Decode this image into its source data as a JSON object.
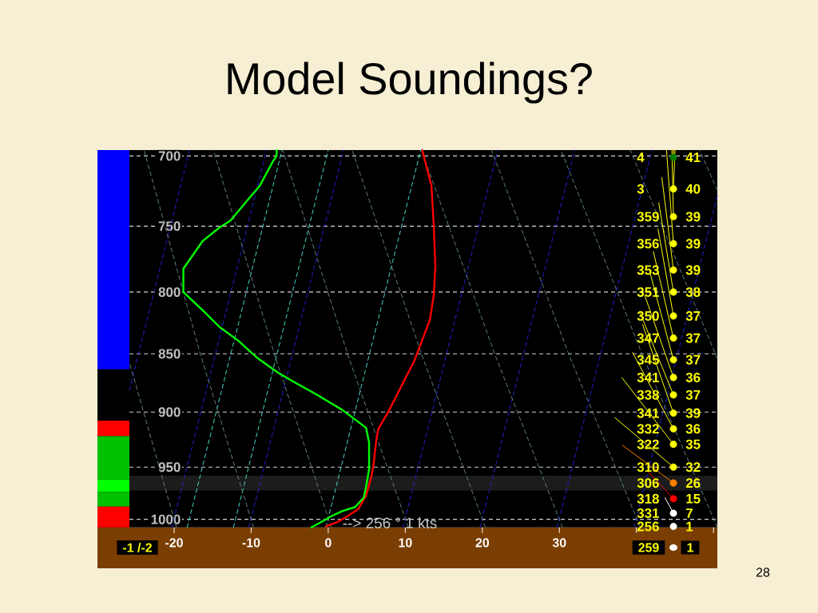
{
  "chart_data": {
    "type": "line",
    "title": "Model Soundings?",
    "xlim": [
      -25.8,
      50.5
    ],
    "xticks": [
      -20,
      -10,
      0,
      10,
      20,
      30,
      {
        "value": 40,
        "label": null
      },
      {
        "value": 50,
        "label": null
      }
    ],
    "ylim": [
      1008,
      696
    ],
    "yticks": [
      700,
      750,
      800,
      850,
      900,
      950,
      1000
    ],
    "log": "y",
    "grid": "y",
    "bands": [
      {
        "axis": "y",
        "from": 958,
        "to": 972,
        "color": "#1c1c1c"
      }
    ],
    "series": [
      {
        "color": "#2020d0",
        "line_style": "dashed",
        "x": [
          -25.8,
          -18.0
        ],
        "values": [
          881,
          696
        ]
      },
      {
        "color": "#2020d0",
        "line_style": "dashed",
        "x": [
          -20.3,
          -8.0
        ],
        "values": [
          1008,
          696
        ]
      },
      {
        "color": "#40d8c8",
        "line_style": "dashed",
        "x": [
          -18.3,
          -6.0
        ],
        "values": [
          1008,
          696
        ]
      },
      {
        "color": "#40d8c8",
        "line_style": "dashed",
        "x": [
          -12.3,
          0.0
        ],
        "values": [
          1008,
          696
        ]
      },
      {
        "color": "#2020d0",
        "line_style": "dashed",
        "x": [
          -10.3,
          2.0
        ],
        "values": [
          1008,
          696
        ]
      },
      {
        "color": "#40d8c8",
        "line_style": "dashed",
        "x": [
          -0.3,
          12.0
        ],
        "values": [
          1008,
          696
        ]
      },
      {
        "color": "#2020d0",
        "line_style": "dashed",
        "x": [
          9.7,
          22.0
        ],
        "values": [
          1008,
          696
        ]
      },
      {
        "color": "#2020d0",
        "line_style": "dashed",
        "x": [
          19.7,
          32.0
        ],
        "values": [
          1008,
          696
        ]
      },
      {
        "color": "#2020d0",
        "line_style": "dashed",
        "x": [
          29.7,
          42.0
        ],
        "values": [
          1008,
          696
        ]
      },
      {
        "color": "#2020d0",
        "line_style": "dashed",
        "x": [
          39.7,
          50.5
        ],
        "values": [
          1008,
          728
        ]
      },
      {
        "color": "#5f8080",
        "line_style": "dashed",
        "x": [
          -19.7,
          -25.8
        ],
        "values": [
          1008,
          857
        ]
      },
      {
        "color": "#5f8080",
        "line_style": "dashed",
        "x": [
          -9.7,
          -16.6,
          -23.9
        ],
        "values": [
          1008,
          850,
          696
        ]
      },
      {
        "color": "#5f8080",
        "line_style": "dashed",
        "x": [
          0.4,
          -7.0,
          -14.9
        ],
        "values": [
          1008,
          850,
          696
        ]
      },
      {
        "color": "#5f8080",
        "line_style": "dashed",
        "x": [
          10.4,
          2.5,
          -5.9
        ],
        "values": [
          1008,
          850,
          696
        ]
      },
      {
        "color": "#5f8080",
        "line_style": "dashed",
        "x": [
          20.4,
          12.1,
          3.1
        ],
        "values": [
          1008,
          850,
          696
        ]
      },
      {
        "color": "#5f8080",
        "line_style": "dashed",
        "x": [
          30.4,
          21.6,
          12.1
        ],
        "values": [
          1008,
          850,
          696
        ]
      },
      {
        "color": "#5f8080",
        "line_style": "dashed",
        "x": [
          40.5,
          31.2,
          21.2
        ],
        "values": [
          1008,
          850,
          696
        ]
      },
      {
        "color": "#5f8080",
        "line_style": "dashed",
        "x": [
          50.5,
          40.7,
          30.2
        ],
        "values": [
          1008,
          850,
          696
        ]
      },
      {
        "color": "#5f8080",
        "line_style": "dashed",
        "x": [
          50.5,
          39.2
        ],
        "values": [
          854,
          696
        ]
      },
      {
        "color": "#5f8080",
        "line_style": "dashed",
        "x": [
          50.5,
          48.2
        ],
        "values": [
          724,
          696
        ]
      },
      {
        "color": "#ff0000",
        "x": [
          12.2,
          13.4,
          13.7,
          13.9,
          13.7,
          13.2,
          12.3,
          11.1,
          9.9,
          9.0,
          7.7,
          6.5,
          6.2,
          5.9,
          5.6,
          4.9,
          3.9,
          2.5,
          1.1,
          -0.3
        ],
        "values": [
          696,
          721,
          750,
          780,
          802,
          822,
          837,
          857,
          872,
          884,
          901,
          915,
          927,
          947,
          959,
          977,
          990,
          997,
          1003,
          1007
        ]
      },
      {
        "color": "#00ff00",
        "x": [
          -6.7,
          -6.7,
          -7.2,
          -8.9,
          -10.6,
          -12.7,
          -14.1,
          -16.3,
          -18.8,
          -18.8,
          -16.2,
          -14.1,
          -11.7,
          -9.3,
          -6.5,
          -4.4,
          -1.7,
          1.8,
          4.9,
          5.3,
          5.3,
          4.9,
          4.6,
          3.5,
          1.8,
          0.4,
          -1.0,
          -2.2
        ],
        "values": [
          696,
          700,
          704,
          721,
          732,
          746,
          751,
          761,
          782,
          800,
          815,
          828,
          839,
          853,
          866,
          874,
          884,
          898,
          914,
          927,
          952,
          969,
          979,
          988,
          992,
          997,
          1003,
          1008
        ]
      },
      {
        "color": "#ffff00",
        "x": [
          44.8,
          44.8
        ],
        "values": [
          701,
          696
        ]
      },
      {
        "color": "#ffff00",
        "x": [
          44.8,
          45.0
        ],
        "values": [
          723,
          696
        ]
      },
      {
        "color": "#ffff00",
        "x": [
          44.8,
          44.6
        ],
        "values": [
          743,
          696
        ]
      },
      {
        "color": "#ffff00",
        "x": [
          44.8,
          43.9
        ],
        "values": [
          763,
          696
        ]
      },
      {
        "color": "#ffff00",
        "x": [
          44.8,
          43.3
        ],
        "values": [
          783,
          715
        ]
      },
      {
        "color": "#ffff00",
        "x": [
          44.8,
          42.9
        ],
        "values": [
          800,
          733
        ]
      },
      {
        "color": "#ffff00",
        "x": [
          44.8,
          42.8
        ],
        "values": [
          819,
          752
        ]
      },
      {
        "color": "#ffff00",
        "x": [
          44.8,
          42.2
        ],
        "values": [
          837,
          769
        ]
      },
      {
        "color": "#ffff00",
        "x": [
          44.8,
          41.8
        ],
        "values": [
          855,
          786
        ]
      },
      {
        "color": "#ffff00",
        "x": [
          44.8,
          41.1
        ],
        "values": [
          870,
          803
        ]
      },
      {
        "color": "#ffff00",
        "x": [
          44.8,
          40.5
        ],
        "values": [
          885,
          817
        ]
      },
      {
        "color": "#ffff00",
        "x": [
          44.8,
          40.8
        ],
        "values": [
          901,
          826
        ]
      },
      {
        "color": "#ffff00",
        "x": [
          44.8,
          39.5
        ],
        "values": [
          915,
          849
        ]
      },
      {
        "color": "#ffff00",
        "x": [
          44.8,
          38.1
        ],
        "values": [
          929,
          870
        ]
      },
      {
        "color": "#ffff00",
        "x": [
          44.8,
          37.2
        ],
        "values": [
          950,
          905
        ]
      },
      {
        "color": "#ff8000",
        "x": [
          44.8,
          38.2
        ],
        "values": [
          965,
          930
        ]
      },
      {
        "color": "#ff0000",
        "x": [
          44.8,
          41.6
        ],
        "values": [
          980,
          955
        ]
      },
      {
        "color": "#ffffff",
        "x": [
          44.8,
          43.7
        ],
        "values": [
          994,
          979
        ]
      },
      {
        "type": "scatter",
        "marker": "circle",
        "x": [
          44.8,
          44.8,
          44.8,
          44.8,
          44.8,
          44.8,
          44.8,
          44.8,
          44.8,
          44.8,
          44.8,
          44.8,
          44.8,
          44.8,
          44.8,
          44.8,
          44.8,
          44.8,
          44.8
        ],
        "values": [
          701,
          723,
          743,
          763,
          783,
          800,
          819,
          837,
          855,
          870,
          885,
          901,
          915,
          929,
          950,
          965,
          980,
          994,
          1007
        ],
        "colors": [
          "#008000",
          "#ffff00",
          "#ffff00",
          "#ffff00",
          "#ffff00",
          "#ffff00",
          "#ffff00",
          "#ffff00",
          "#ffff00",
          "#ffff00",
          "#ffff00",
          "#ffff00",
          "#ffff00",
          "#ffff00",
          "#ffff00",
          "#ff8000",
          "#ff0000",
          "#ffffff",
          "#ffffff"
        ]
      }
    ],
    "annotations": [
      "4",
      "41",
      "3",
      "40",
      "359",
      "39",
      "356",
      "39",
      "353",
      "39",
      "351",
      "38",
      "350",
      "37",
      "347",
      "37",
      "345",
      "37",
      "341",
      "36",
      "338",
      "37",
      "341",
      "39",
      "332",
      "36",
      "322",
      "35",
      "310",
      "32",
      "306",
      "26",
      "318",
      "15",
      "331",
      "7",
      "256",
      "1",
      "--> 256 ° 1 kts",
      "-1 /-2",
      "259",
      "1",
      "28"
    ]
  }
}
